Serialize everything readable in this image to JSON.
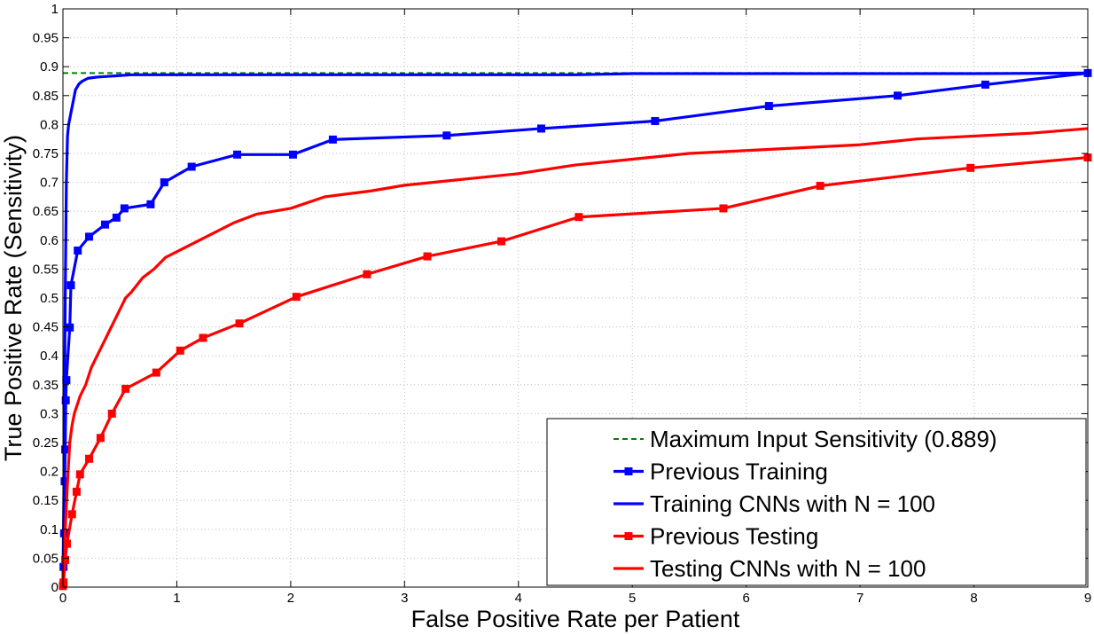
{
  "chart_data": {
    "type": "line",
    "title": "",
    "xlabel": "False Positive Rate per Patient",
    "ylabel": "True Positive Rate (Sensitivity)",
    "xlim": [
      0,
      9
    ],
    "ylim": [
      0,
      1
    ],
    "x_ticks": [
      "0",
      "1",
      "2",
      "3",
      "4",
      "5",
      "6",
      "7",
      "8",
      "9"
    ],
    "y_ticks": [
      "0",
      "0.05",
      "0.1",
      "0.15",
      "0.2",
      "0.25",
      "0.3",
      "0.35",
      "0.4",
      "0.45",
      "0.5",
      "0.55",
      "0.6",
      "0.65",
      "0.7",
      "0.75",
      "0.8",
      "0.85",
      "0.9",
      "0.95",
      "1"
    ],
    "grid": true,
    "legend_position": "bottom-right",
    "series": [
      {
        "name": "Maximum Input Sensitivity (0.889)",
        "style": "dashed",
        "color": "#008000",
        "marker": "none",
        "x": [
          0,
          9
        ],
        "y": [
          0.889,
          0.889
        ]
      },
      {
        "name": "Previous Training",
        "style": "solid",
        "color": "#0000ff",
        "marker": "square",
        "x": [
          0,
          0.005,
          0.01,
          0.015,
          0.02,
          0.025,
          0.03,
          0.06,
          0.07,
          0.13,
          0.23,
          0.37,
          0.47,
          0.54,
          0.77,
          0.89,
          1.13,
          1.53,
          2.02,
          2.37,
          3.37,
          4.2,
          5.2,
          6.2,
          7.33,
          8.1,
          9.0
        ],
        "y": [
          0.002,
          0.035,
          0.093,
          0.183,
          0.238,
          0.323,
          0.358,
          0.449,
          0.522,
          0.582,
          0.606,
          0.627,
          0.639,
          0.655,
          0.662,
          0.7,
          0.727,
          0.748,
          0.748,
          0.774,
          0.781,
          0.793,
          0.806,
          0.832,
          0.85,
          0.869,
          0.889
        ]
      },
      {
        "name": "Training CNNs with N = 100",
        "style": "solid",
        "color": "#0000ff",
        "marker": "none",
        "x": [
          0,
          0.01,
          0.02,
          0.03,
          0.04,
          0.05,
          0.07,
          0.09,
          0.11,
          0.14,
          0.17,
          0.22,
          0.3,
          0.45,
          0.6,
          0.8,
          1.5,
          3,
          4.5,
          5,
          6,
          7,
          8,
          9
        ],
        "y": [
          0,
          0.2,
          0.5,
          0.7,
          0.78,
          0.8,
          0.82,
          0.84,
          0.86,
          0.87,
          0.875,
          0.88,
          0.882,
          0.884,
          0.886,
          0.886,
          0.886,
          0.886,
          0.886,
          0.888,
          0.888,
          0.888,
          0.888,
          0.889
        ]
      },
      {
        "name": "Previous Testing",
        "style": "solid",
        "color": "#ff0000",
        "marker": "square",
        "x": [
          0,
          0.005,
          0.02,
          0.035,
          0.08,
          0.12,
          0.15,
          0.23,
          0.33,
          0.43,
          0.55,
          0.82,
          1.03,
          1.23,
          1.55,
          2.05,
          2.67,
          3.2,
          3.85,
          4.53,
          5.8,
          6.65,
          7.97,
          9.0
        ],
        "y": [
          0.002,
          0.008,
          0.047,
          0.075,
          0.126,
          0.165,
          0.195,
          0.222,
          0.258,
          0.3,
          0.343,
          0.371,
          0.409,
          0.431,
          0.456,
          0.502,
          0.541,
          0.572,
          0.598,
          0.64,
          0.655,
          0.694,
          0.725,
          0.743
        ]
      },
      {
        "name": "Testing CNNs with N = 100",
        "style": "solid",
        "color": "#ff0000",
        "marker": "none",
        "x": [
          0,
          0.02,
          0.04,
          0.06,
          0.08,
          0.1,
          0.15,
          0.2,
          0.25,
          0.3,
          0.35,
          0.4,
          0.45,
          0.5,
          0.55,
          0.6,
          0.7,
          0.8,
          0.9,
          1.0,
          1.1,
          1.2,
          1.3,
          1.5,
          1.7,
          2.0,
          2.3,
          2.7,
          3.0,
          3.5,
          4.0,
          4.5,
          5.0,
          5.5,
          6.0,
          6.5,
          7.0,
          7.5,
          8.0,
          8.5,
          9.0
        ],
        "y": [
          0,
          0.1,
          0.18,
          0.25,
          0.28,
          0.3,
          0.33,
          0.35,
          0.38,
          0.4,
          0.42,
          0.44,
          0.46,
          0.48,
          0.5,
          0.51,
          0.535,
          0.55,
          0.57,
          0.58,
          0.59,
          0.6,
          0.61,
          0.63,
          0.645,
          0.655,
          0.675,
          0.685,
          0.695,
          0.705,
          0.715,
          0.73,
          0.74,
          0.75,
          0.755,
          0.76,
          0.765,
          0.775,
          0.78,
          0.785,
          0.793
        ]
      }
    ]
  }
}
